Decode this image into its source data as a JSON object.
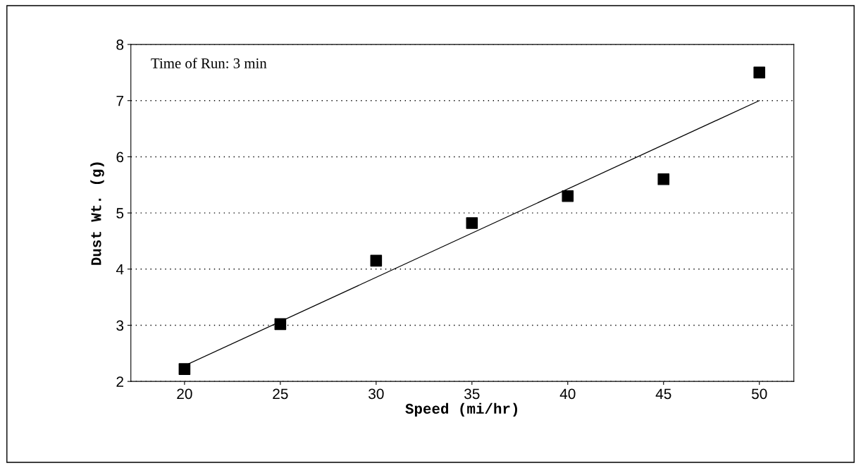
{
  "chart_data": {
    "type": "scatter",
    "xlabel": "Speed (mi/hr)",
    "ylabel": "Dust Wt. (g)",
    "annotations": [
      "Time of Run: 3 min"
    ],
    "series": [
      {
        "color": "#000000",
        "x": [
          20,
          25,
          30,
          35,
          40,
          45,
          50
        ],
        "values": [
          2.22,
          3.02,
          4.15,
          4.82,
          5.3,
          5.6,
          7.5
        ],
        "marker": "square"
      },
      {
        "type": "line",
        "color": "#000000",
        "x": [
          20,
          50
        ],
        "values": [
          2.28,
          7.0
        ],
        "marker": "none",
        "line_style": "solid"
      }
    ],
    "xlim": [
      17.2,
      51.8
    ],
    "ylim": [
      2,
      8
    ],
    "xticks": [
      20,
      25,
      30,
      35,
      40,
      45,
      50
    ],
    "yticks": [
      2,
      3,
      4,
      5,
      6,
      7,
      8
    ],
    "grid": "y"
  }
}
